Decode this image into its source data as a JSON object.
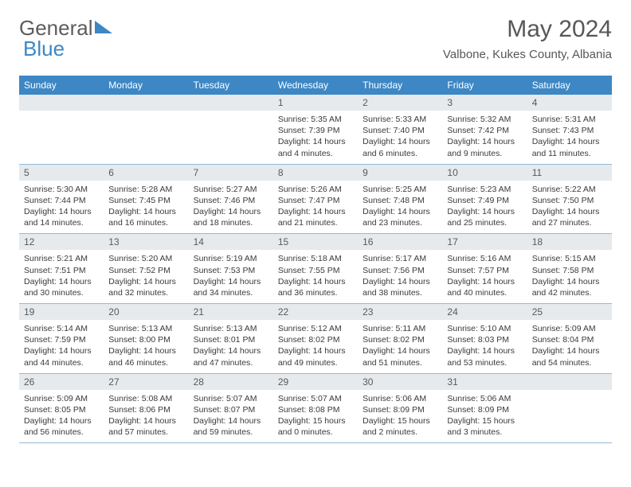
{
  "brand": {
    "part1": "General",
    "part2": "Blue"
  },
  "title": {
    "month": "May 2024",
    "location": "Valbone, Kukes County, Albania"
  },
  "weekdays": [
    "Sunday",
    "Monday",
    "Tuesday",
    "Wednesday",
    "Thursday",
    "Friday",
    "Saturday"
  ],
  "colors": {
    "header_bg": "#3d87c5",
    "header_text": "#ffffff",
    "daynum_bg": "#e6eaed",
    "text": "#3a3a3a",
    "border": "#95b9d5"
  },
  "blanks_before": 3,
  "days": [
    {
      "n": "1",
      "sr": "5:35 AM",
      "ss": "7:39 PM",
      "dl": "14 hours and 4 minutes."
    },
    {
      "n": "2",
      "sr": "5:33 AM",
      "ss": "7:40 PM",
      "dl": "14 hours and 6 minutes."
    },
    {
      "n": "3",
      "sr": "5:32 AM",
      "ss": "7:42 PM",
      "dl": "14 hours and 9 minutes."
    },
    {
      "n": "4",
      "sr": "5:31 AM",
      "ss": "7:43 PM",
      "dl": "14 hours and 11 minutes."
    },
    {
      "n": "5",
      "sr": "5:30 AM",
      "ss": "7:44 PM",
      "dl": "14 hours and 14 minutes."
    },
    {
      "n": "6",
      "sr": "5:28 AM",
      "ss": "7:45 PM",
      "dl": "14 hours and 16 minutes."
    },
    {
      "n": "7",
      "sr": "5:27 AM",
      "ss": "7:46 PM",
      "dl": "14 hours and 18 minutes."
    },
    {
      "n": "8",
      "sr": "5:26 AM",
      "ss": "7:47 PM",
      "dl": "14 hours and 21 minutes."
    },
    {
      "n": "9",
      "sr": "5:25 AM",
      "ss": "7:48 PM",
      "dl": "14 hours and 23 minutes."
    },
    {
      "n": "10",
      "sr": "5:23 AM",
      "ss": "7:49 PM",
      "dl": "14 hours and 25 minutes."
    },
    {
      "n": "11",
      "sr": "5:22 AM",
      "ss": "7:50 PM",
      "dl": "14 hours and 27 minutes."
    },
    {
      "n": "12",
      "sr": "5:21 AM",
      "ss": "7:51 PM",
      "dl": "14 hours and 30 minutes."
    },
    {
      "n": "13",
      "sr": "5:20 AM",
      "ss": "7:52 PM",
      "dl": "14 hours and 32 minutes."
    },
    {
      "n": "14",
      "sr": "5:19 AM",
      "ss": "7:53 PM",
      "dl": "14 hours and 34 minutes."
    },
    {
      "n": "15",
      "sr": "5:18 AM",
      "ss": "7:55 PM",
      "dl": "14 hours and 36 minutes."
    },
    {
      "n": "16",
      "sr": "5:17 AM",
      "ss": "7:56 PM",
      "dl": "14 hours and 38 minutes."
    },
    {
      "n": "17",
      "sr": "5:16 AM",
      "ss": "7:57 PM",
      "dl": "14 hours and 40 minutes."
    },
    {
      "n": "18",
      "sr": "5:15 AM",
      "ss": "7:58 PM",
      "dl": "14 hours and 42 minutes."
    },
    {
      "n": "19",
      "sr": "5:14 AM",
      "ss": "7:59 PM",
      "dl": "14 hours and 44 minutes."
    },
    {
      "n": "20",
      "sr": "5:13 AM",
      "ss": "8:00 PM",
      "dl": "14 hours and 46 minutes."
    },
    {
      "n": "21",
      "sr": "5:13 AM",
      "ss": "8:01 PM",
      "dl": "14 hours and 47 minutes."
    },
    {
      "n": "22",
      "sr": "5:12 AM",
      "ss": "8:02 PM",
      "dl": "14 hours and 49 minutes."
    },
    {
      "n": "23",
      "sr": "5:11 AM",
      "ss": "8:02 PM",
      "dl": "14 hours and 51 minutes."
    },
    {
      "n": "24",
      "sr": "5:10 AM",
      "ss": "8:03 PM",
      "dl": "14 hours and 53 minutes."
    },
    {
      "n": "25",
      "sr": "5:09 AM",
      "ss": "8:04 PM",
      "dl": "14 hours and 54 minutes."
    },
    {
      "n": "26",
      "sr": "5:09 AM",
      "ss": "8:05 PM",
      "dl": "14 hours and 56 minutes."
    },
    {
      "n": "27",
      "sr": "5:08 AM",
      "ss": "8:06 PM",
      "dl": "14 hours and 57 minutes."
    },
    {
      "n": "28",
      "sr": "5:07 AM",
      "ss": "8:07 PM",
      "dl": "14 hours and 59 minutes."
    },
    {
      "n": "29",
      "sr": "5:07 AM",
      "ss": "8:08 PM",
      "dl": "15 hours and 0 minutes."
    },
    {
      "n": "30",
      "sr": "5:06 AM",
      "ss": "8:09 PM",
      "dl": "15 hours and 2 minutes."
    },
    {
      "n": "31",
      "sr": "5:06 AM",
      "ss": "8:09 PM",
      "dl": "15 hours and 3 minutes."
    }
  ],
  "labels": {
    "sunrise": "Sunrise:",
    "sunset": "Sunset:",
    "daylight": "Daylight:"
  }
}
